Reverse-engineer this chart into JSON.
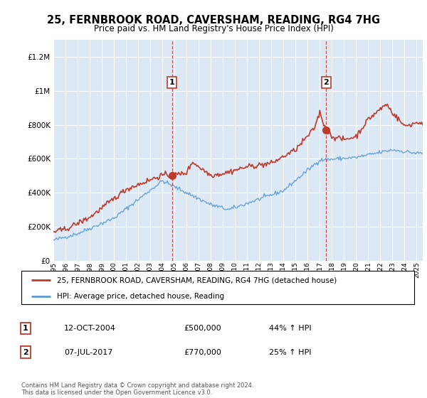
{
  "title": "25, FERNBROOK ROAD, CAVERSHAM, READING, RG4 7HG",
  "subtitle": "Price paid vs. HM Land Registry's House Price Index (HPI)",
  "title_fontsize": 10.5,
  "subtitle_fontsize": 8.5,
  "xlim_start": 1995.0,
  "xlim_end": 2025.5,
  "ylim": [
    0,
    1300000
  ],
  "yticks": [
    0,
    200000,
    400000,
    600000,
    800000,
    1000000,
    1200000
  ],
  "ytick_labels": [
    "£0",
    "£200K",
    "£400K",
    "£600K",
    "£800K",
    "£1M",
    "£1.2M"
  ],
  "hpi_color": "#5b9bd5",
  "price_color": "#c0392b",
  "plot_bg_color": "#dce9f5",
  "grid_color": "#ffffff",
  "legend_label_price": "25, FERNBROOK ROAD, CAVERSHAM, READING, RG4 7HG (detached house)",
  "legend_label_hpi": "HPI: Average price, detached house, Reading",
  "annotation1_label": "1",
  "annotation1_date": "12-OCT-2004",
  "annotation1_price": "£500,000",
  "annotation1_extra": "44% ↑ HPI",
  "annotation2_label": "2",
  "annotation2_date": "07-JUL-2017",
  "annotation2_price": "£770,000",
  "annotation2_extra": "25% ↑ HPI",
  "footer": "Contains HM Land Registry data © Crown copyright and database right 2024.\nThis data is licensed under the Open Government Licence v3.0.",
  "vline1_x": 2004.79,
  "vline2_x": 2017.52,
  "marker1_y": 500000,
  "marker2_y": 770000,
  "box_label_color": "#c0392b"
}
